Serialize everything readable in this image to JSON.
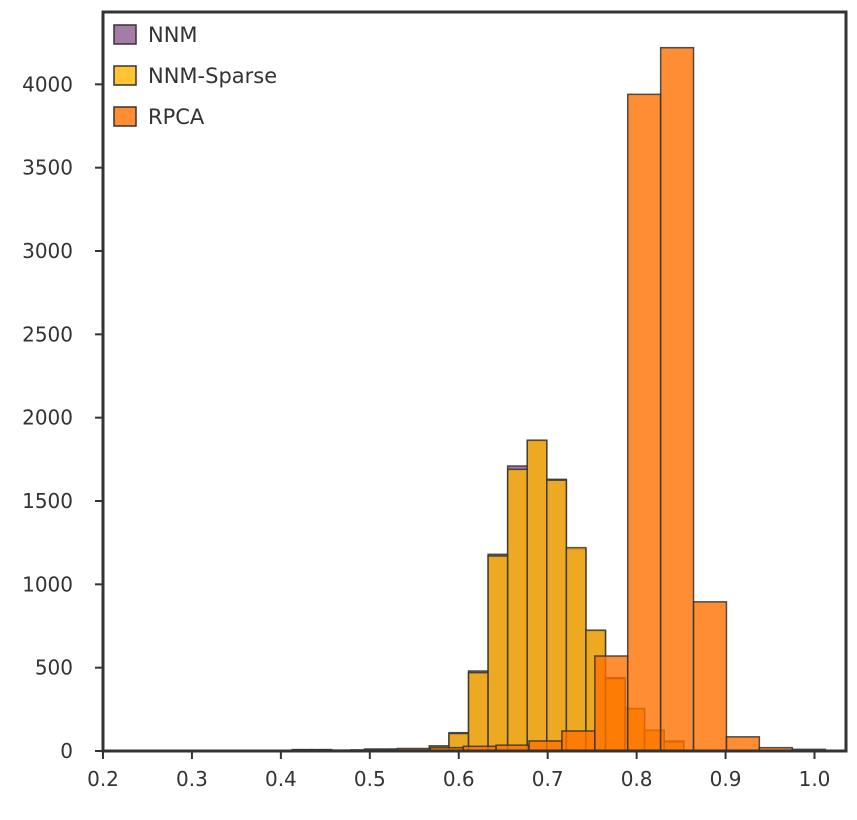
{
  "chart_data": {
    "type": "bar",
    "subtype": "histogram",
    "title": "",
    "xlabel": "",
    "ylabel": "",
    "xlim": [
      0.2,
      1.0
    ],
    "ylim": [
      0,
      4200
    ],
    "xticks": [
      "0.2",
      "0.3",
      "0.4",
      "0.5",
      "0.6",
      "0.7",
      "0.8",
      "0.9",
      "1.0"
    ],
    "yticks": [
      "0",
      "500",
      "1000",
      "1500",
      "2000",
      "2500",
      "3000",
      "3500",
      "4000"
    ],
    "grid": false,
    "legend_position": "top-left",
    "series": [
      {
        "name": "NNM",
        "color": "#8e5b91",
        "bins": [
          [
            0.237,
            0.259,
            3
          ],
          [
            0.259,
            0.281,
            2
          ],
          [
            0.281,
            0.303,
            2
          ],
          [
            0.303,
            0.325,
            2
          ],
          [
            0.325,
            0.347,
            2
          ],
          [
            0.347,
            0.369,
            2
          ],
          [
            0.369,
            0.391,
            3
          ],
          [
            0.391,
            0.413,
            3
          ],
          [
            0.413,
            0.435,
            8
          ],
          [
            0.435,
            0.457,
            8
          ],
          [
            0.457,
            0.479,
            5
          ],
          [
            0.479,
            0.501,
            6
          ],
          [
            0.501,
            0.523,
            8
          ],
          [
            0.523,
            0.545,
            10
          ],
          [
            0.545,
            0.567,
            10
          ],
          [
            0.567,
            0.589,
            30
          ],
          [
            0.589,
            0.611,
            110
          ],
          [
            0.611,
            0.633,
            480
          ],
          [
            0.633,
            0.655,
            1180
          ],
          [
            0.655,
            0.677,
            1710
          ],
          [
            0.677,
            0.699,
            1860
          ],
          [
            0.699,
            0.721,
            1630
          ],
          [
            0.721,
            0.743,
            1210
          ],
          [
            0.743,
            0.765,
            720
          ],
          [
            0.765,
            0.787,
            440
          ],
          [
            0.787,
            0.809,
            250
          ],
          [
            0.809,
            0.831,
            120
          ],
          [
            0.831,
            0.853,
            60
          ]
        ]
      },
      {
        "name": "NNM-Sparse",
        "color": "#ffb400",
        "bins": [
          [
            0.237,
            0.259,
            3
          ],
          [
            0.259,
            0.281,
            2
          ],
          [
            0.281,
            0.303,
            2
          ],
          [
            0.303,
            0.325,
            2
          ],
          [
            0.325,
            0.347,
            2
          ],
          [
            0.347,
            0.369,
            2
          ],
          [
            0.369,
            0.391,
            3
          ],
          [
            0.391,
            0.413,
            3
          ],
          [
            0.413,
            0.435,
            8
          ],
          [
            0.435,
            0.457,
            8
          ],
          [
            0.457,
            0.479,
            5
          ],
          [
            0.479,
            0.501,
            6
          ],
          [
            0.501,
            0.523,
            8
          ],
          [
            0.523,
            0.545,
            10
          ],
          [
            0.545,
            0.567,
            10
          ],
          [
            0.567,
            0.589,
            30
          ],
          [
            0.589,
            0.611,
            105
          ],
          [
            0.611,
            0.633,
            470
          ],
          [
            0.633,
            0.655,
            1170
          ],
          [
            0.655,
            0.677,
            1690
          ],
          [
            0.677,
            0.699,
            1865
          ],
          [
            0.699,
            0.721,
            1625
          ],
          [
            0.721,
            0.743,
            1220
          ],
          [
            0.743,
            0.765,
            725
          ],
          [
            0.765,
            0.787,
            435
          ],
          [
            0.787,
            0.809,
            255
          ],
          [
            0.809,
            0.831,
            125
          ],
          [
            0.831,
            0.853,
            55
          ]
        ]
      },
      {
        "name": "RPCA",
        "color": "#ff7000",
        "bins": [
          [
            0.494,
            0.531,
            12
          ],
          [
            0.531,
            0.568,
            15
          ],
          [
            0.568,
            0.605,
            20
          ],
          [
            0.605,
            0.642,
            28
          ],
          [
            0.642,
            0.679,
            35
          ],
          [
            0.679,
            0.716,
            60
          ],
          [
            0.716,
            0.753,
            120
          ],
          [
            0.753,
            0.79,
            570
          ],
          [
            0.79,
            0.827,
            3940
          ],
          [
            0.827,
            0.864,
            4220
          ],
          [
            0.864,
            0.901,
            895
          ],
          [
            0.901,
            0.938,
            85
          ],
          [
            0.938,
            0.975,
            20
          ],
          [
            0.975,
            1.012,
            10
          ]
        ]
      }
    ]
  }
}
